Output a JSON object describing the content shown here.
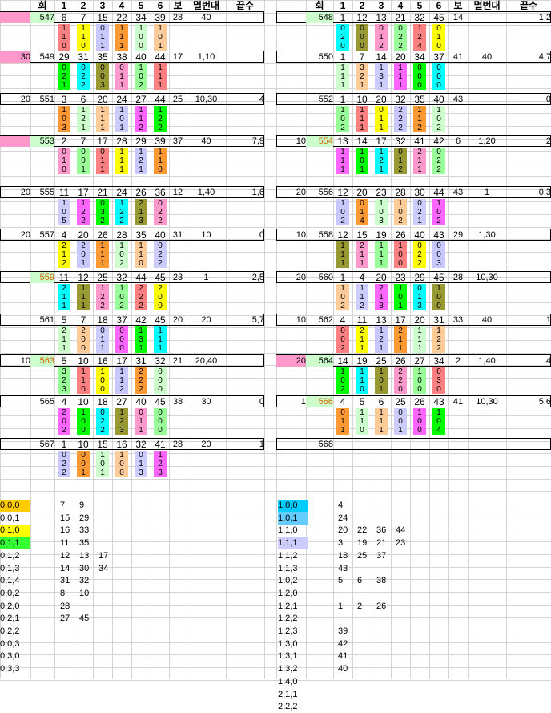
{
  "left": {
    "header": [
      "회",
      "1",
      "2",
      "3",
      "4",
      "5",
      "6",
      "보",
      "멸번대",
      "끝수"
    ],
    "blocks": [
      {
        "pre": "",
        "id": "547",
        "nums": [
          "6",
          "7",
          "15",
          "22",
          "34",
          "39"
        ],
        "bonus": "28",
        "mb": "40",
        "ks": "",
        "rows": [
          [
            "1",
            "1",
            "0",
            "1",
            "1",
            "1"
          ],
          [
            "1",
            "1",
            "1",
            "1",
            "0",
            "0"
          ],
          [
            "0",
            "0",
            "1",
            "1",
            "0",
            "1"
          ]
        ]
      },
      {
        "pre": "30",
        "id": "549",
        "nums": [
          "29",
          "31",
          "35",
          "38",
          "40",
          "44"
        ],
        "bonus": "17",
        "mb": "1,10",
        "ks": "",
        "rows": [
          [
            "0",
            "0",
            "0",
            "0",
            "1",
            "1"
          ],
          [
            "2",
            "2",
            "0",
            "1",
            "0",
            "1"
          ],
          [
            "1",
            "2",
            "3",
            "1",
            "2",
            "1"
          ]
        ]
      },
      {
        "pre": "20",
        "id": "551",
        "nums": [
          "3",
          "6",
          "20",
          "24",
          "27",
          "44"
        ],
        "bonus": "25",
        "mb": "10,30",
        "ks": "4",
        "rows": [
          [
            "1",
            "1",
            "1",
            "1",
            "1",
            "1"
          ],
          [
            "0",
            "2",
            "1",
            "0",
            "1",
            "2"
          ],
          [
            "3",
            "1",
            "1",
            "1",
            "2",
            "2"
          ]
        ]
      },
      {
        "pre": "",
        "id": "553",
        "nums": [
          "2",
          "7",
          "17",
          "28",
          "29",
          "39"
        ],
        "bonus": "37",
        "mb": "40",
        "ks": "7,9",
        "rows": [
          [
            "0",
            "0",
            "0",
            "1",
            "1",
            "1"
          ],
          [
            "1",
            "0",
            "1",
            "1",
            "2",
            "1"
          ],
          [
            "0",
            "1",
            "1",
            "1",
            "1",
            "0"
          ]
        ]
      },
      {
        "pre": "20",
        "id": "555",
        "nums": [
          "11",
          "17",
          "21",
          "24",
          "26",
          "36"
        ],
        "bonus": "12",
        "mb": "1,40",
        "ks": "1,6",
        "rows": [
          [
            "1",
            "1",
            "0",
            "1",
            "2",
            "0"
          ],
          [
            "0",
            "2",
            "3",
            "2",
            "1",
            "2"
          ],
          [
            "5",
            "2",
            "2",
            "2",
            "3",
            "2"
          ]
        ]
      },
      {
        "pre": "20",
        "id": "557",
        "nums": [
          "4",
          "20",
          "26",
          "28",
          "35",
          "40"
        ],
        "bonus": "31",
        "mb": "10",
        "ks": "0",
        "rows": [
          [
            "2",
            "2",
            "1",
            "1",
            "1",
            "0"
          ],
          [
            "1",
            "0",
            "1",
            "0",
            "1",
            "2"
          ],
          [
            "2",
            "1",
            "1",
            "2",
            "0",
            "2"
          ]
        ]
      },
      {
        "pre": "",
        "id": "559",
        "nums": [
          "11",
          "12",
          "25",
          "32",
          "44",
          "45"
        ],
        "bonus": "23",
        "mb": "1",
        "ks": "2,5",
        "rows": [
          [
            "2",
            "1",
            "1",
            "1",
            "2",
            "2"
          ],
          [
            "1",
            "1",
            "2",
            "0",
            "2",
            "0"
          ],
          [
            "1",
            "1",
            "2",
            "2",
            "2",
            "0"
          ]
        ]
      },
      {
        "pre": "",
        "id": "561",
        "nums": [
          "5",
          "7",
          "18",
          "37",
          "42",
          "45"
        ],
        "bonus": "20",
        "mb": "20",
        "ks": "5,7",
        "rows": [
          [
            "2",
            "2",
            "0",
            "0",
            "1",
            "1"
          ],
          [
            "1",
            "0",
            "1",
            "0",
            "3",
            "1"
          ],
          [
            "1",
            "0",
            "1",
            "0",
            "1",
            "1"
          ]
        ]
      },
      {
        "pre": "10",
        "id": "563",
        "nums": [
          "5",
          "10",
          "16",
          "17",
          "31",
          "32"
        ],
        "bonus": "21",
        "mb": "20,40",
        "ks": "",
        "rows": [
          [
            "3",
            "1",
            "1",
            "1",
            "2",
            "0"
          ],
          [
            "2",
            "1",
            "0",
            "1",
            "2",
            "0"
          ],
          [
            "3",
            "0",
            "0",
            "2",
            "2",
            "0"
          ]
        ]
      },
      {
        "pre": "",
        "id": "565",
        "nums": [
          "4",
          "10",
          "18",
          "27",
          "40",
          "45"
        ],
        "bonus": "38",
        "mb": "30",
        "ks": "0",
        "rows": [
          [
            "2",
            "1",
            "0",
            "1",
            "0",
            "0"
          ],
          [
            "0",
            "0",
            "2",
            "2",
            "1",
            "0"
          ],
          [
            "2",
            "0",
            "2",
            "3",
            "1",
            "0"
          ]
        ]
      },
      {
        "pre": "",
        "id": "567",
        "nums": [
          "1",
          "10",
          "15",
          "16",
          "32",
          "41"
        ],
        "bonus": "28",
        "mb": "20",
        "ks": "1",
        "rows": [
          [
            "0",
            "0",
            "1",
            "1",
            "0",
            "1"
          ],
          [
            "2",
            "0",
            "0",
            "0",
            "1",
            "2"
          ],
          [
            "2",
            "1",
            "1",
            "0",
            "3",
            "3"
          ]
        ]
      }
    ]
  },
  "right": {
    "header": [
      "회",
      "1",
      "2",
      "3",
      "4",
      "5",
      "6",
      "보",
      "멸번대",
      "끝수"
    ],
    "blocks": [
      {
        "pre": "",
        "id": "548",
        "nums": [
          "1",
          "12",
          "13",
          "21",
          "32",
          "45"
        ],
        "bonus": "14",
        "mb": "",
        "ks": "1,2",
        "rows": [
          [
            "0",
            "0",
            "0",
            "0",
            "1",
            "0"
          ],
          [
            "2",
            "0",
            "1",
            "2",
            "2",
            "1"
          ],
          [
            "0",
            "0",
            "2",
            "2",
            "4",
            "0"
          ]
        ]
      },
      {
        "pre": "",
        "id": "550",
        "nums": [
          "1",
          "7",
          "14",
          "20",
          "34",
          "37"
        ],
        "bonus": "41",
        "mb": "40",
        "ks": "4,7",
        "rows": [
          [
            "1",
            "3",
            "1",
            "1",
            "0",
            "0"
          ],
          [
            "1",
            "2",
            "3",
            "1",
            "0",
            "0"
          ],
          [
            "1",
            "1",
            "1",
            "1",
            "0",
            "0"
          ]
        ]
      },
      {
        "pre": "",
        "id": "552",
        "nums": [
          "1",
          "10",
          "20",
          "32",
          "35",
          "40"
        ],
        "bonus": "43",
        "mb": "",
        "ks": "0",
        "rows": [
          [
            "1",
            "1",
            "0",
            "2",
            "1",
            "1"
          ],
          [
            "0",
            "1",
            "1",
            "2",
            "1",
            "0"
          ],
          [
            "2",
            "1",
            "1",
            "2",
            "2",
            "2"
          ]
        ]
      },
      {
        "pre": "10",
        "id": "554",
        "nums": [
          "13",
          "14",
          "17",
          "32",
          "41",
          "42"
        ],
        "bonus": "6",
        "mb": "1,20",
        "ks": "2",
        "rows": [
          [
            "1",
            "1",
            "1",
            "0",
            "2",
            "0"
          ],
          [
            "1",
            "0",
            "2",
            "1",
            "1",
            "2"
          ],
          [
            "1",
            "1",
            "1",
            "2",
            "1",
            "2"
          ]
        ]
      },
      {
        "pre": "20",
        "id": "556",
        "nums": [
          "12",
          "20",
          "23",
          "28",
          "30",
          "44"
        ],
        "bonus": "43",
        "mb": "1",
        "ks": "0,3",
        "rows": [
          [
            "1",
            "0",
            "1",
            "1",
            "0",
            "1"
          ],
          [
            "0",
            "1",
            "0",
            "0",
            "2",
            "0"
          ],
          [
            "2",
            "4",
            "3",
            "2",
            "1",
            "2"
          ]
        ]
      },
      {
        "pre": "10",
        "id": "558",
        "nums": [
          "12",
          "15",
          "19",
          "26",
          "40",
          "43"
        ],
        "bonus": "29",
        "mb": "1,30",
        "ks": "",
        "rows": [
          [
            "1",
            "2",
            "1",
            "1",
            "0",
            "0"
          ],
          [
            "1",
            "1",
            "1",
            "0",
            "2",
            "0"
          ],
          [
            "1",
            "1",
            "1",
            "0",
            "2",
            "3"
          ]
        ]
      },
      {
        "pre": "20",
        "id": "560",
        "nums": [
          "1",
          "4",
          "20",
          "23",
          "29",
          "45"
        ],
        "bonus": "28",
        "mb": "10,30",
        "ks": "",
        "rows": [
          [
            "1",
            "1",
            "2",
            "1",
            "0",
            "1"
          ],
          [
            "0",
            "1",
            "1",
            "0",
            "1",
            "0"
          ],
          [
            "2",
            "2",
            "3",
            "1",
            "3",
            "0"
          ]
        ]
      },
      {
        "pre": "10",
        "id": "562",
        "nums": [
          "4",
          "11",
          "13",
          "17",
          "20",
          "31"
        ],
        "bonus": "33",
        "mb": "40",
        "ks": "1",
        "rows": [
          [
            "0",
            "2",
            "1",
            "2",
            "1",
            "1"
          ],
          [
            "0",
            "1",
            "2",
            "1",
            "1",
            "2"
          ],
          [
            "2",
            "1",
            "1",
            "1",
            "1",
            "2"
          ]
        ]
      },
      {
        "pre": "20",
        "id": "564",
        "nums": [
          "14",
          "19",
          "25",
          "26",
          "27",
          "34"
        ],
        "bonus": "2",
        "mb": "1,40",
        "ks": "4",
        "rows": [
          [
            "1",
            "1",
            "1",
            "2",
            "1",
            "0"
          ],
          [
            "0",
            "1",
            "0",
            "2",
            "0",
            "3"
          ],
          [
            "2",
            "0",
            "1",
            "0",
            "0",
            "0"
          ]
        ]
      },
      {
        "pre": "1",
        "id": "566",
        "nums": [
          "4",
          "5",
          "6",
          "25",
          "26",
          "43"
        ],
        "bonus": "41",
        "mb": "10,30",
        "ks": "5,6",
        "rows": [
          [
            "0",
            "1",
            "1",
            "0",
            "1",
            "1"
          ],
          [
            "1",
            "1",
            "1",
            "0",
            "0",
            "0"
          ],
          [
            "1",
            "0",
            "1",
            "1",
            "0",
            "4"
          ]
        ]
      },
      {
        "pre": "",
        "id": "568",
        "nums": [
          "",
          "",
          "",
          "",
          "",
          ""
        ],
        "bonus": "",
        "mb": "",
        "ks": "",
        "rows": []
      }
    ]
  },
  "legend_left": [
    {
      "key": "0,0,0",
      "vals": [
        "7",
        "9"
      ]
    },
    {
      "key": "0,0,1",
      "vals": [
        "15",
        "29"
      ]
    },
    {
      "key": "0,1,0",
      "vals": [
        "16",
        "33"
      ]
    },
    {
      "key": "0,1,1",
      "vals": [
        "11",
        "35"
      ]
    },
    {
      "key": "0,1,2",
      "vals": [
        "12",
        "13",
        "17"
      ]
    },
    {
      "key": "0,1,3",
      "vals": [
        "14",
        "30",
        "34"
      ]
    },
    {
      "key": "0,1,4",
      "vals": [
        "31",
        "32"
      ]
    },
    {
      "key": "0,0,2",
      "vals": [
        "8",
        "10"
      ]
    },
    {
      "key": "0,2,0",
      "vals": [
        "28"
      ]
    },
    {
      "key": "0,2,1",
      "vals": [
        "27",
        "45"
      ]
    },
    {
      "key": "0,2,2",
      "vals": []
    },
    {
      "key": "0,0,3",
      "vals": []
    },
    {
      "key": "0,3,0",
      "vals": []
    },
    {
      "key": "0,3,3",
      "vals": []
    }
  ],
  "legend_right": [
    {
      "key": "1,0,0",
      "vals": [
        "4"
      ]
    },
    {
      "key": "1,0,1",
      "vals": [
        "24"
      ]
    },
    {
      "key": "1,1,0",
      "vals": [
        "20",
        "22",
        "36",
        "44"
      ]
    },
    {
      "key": "1,1,1",
      "vals": [
        "3",
        "19",
        "21",
        "23"
      ]
    },
    {
      "key": "1,1,2",
      "vals": [
        "18",
        "25",
        "37"
      ]
    },
    {
      "key": "1,1,3",
      "vals": [
        "43"
      ]
    },
    {
      "key": "1,0,2",
      "vals": [
        "5",
        "6",
        "38"
      ]
    },
    {
      "key": "1,2,0",
      "vals": []
    },
    {
      "key": "1,2,1",
      "vals": [
        "1",
        "2",
        "26"
      ]
    },
    {
      "key": "1,2,2",
      "vals": []
    },
    {
      "key": "1,2,3",
      "vals": [
        "39"
      ]
    },
    {
      "key": "1,3,0",
      "vals": [
        "42"
      ]
    },
    {
      "key": "1,3,1",
      "vals": [
        "41"
      ]
    },
    {
      "key": "1,3,2",
      "vals": [
        "40"
      ]
    },
    {
      "key": "1,4,0",
      "vals": []
    },
    {
      "key": "2,1,1",
      "vals": []
    },
    {
      "key": "2,2,2",
      "vals": []
    }
  ],
  "colors": {
    "c0": "#ff8080",
    "c1": "#ff66ff",
    "c2": "#ffff00",
    "c3": "#00ff00",
    "c4": "#c8c8ff",
    "c5": "#00ffff",
    "c6": "#ff9933",
    "c7": "#999933",
    "c8": "#ccffcc",
    "c9": "#ff99cc",
    "c10": "#ffcc99",
    "c11": "#99ff99",
    "c12": "#ccccff",
    "pink": "#ff99cc",
    "legend1": "#ffcc00",
    "legend2": "#ffff00",
    "legend3": "#33ff33",
    "legend4": "#ccccff",
    "legend5": "#00ccff",
    "legend6": "#66ccff",
    "legend7": "#ccccff",
    "gridline": "#d4d4d4",
    "id_green": "#ccffcc"
  }
}
